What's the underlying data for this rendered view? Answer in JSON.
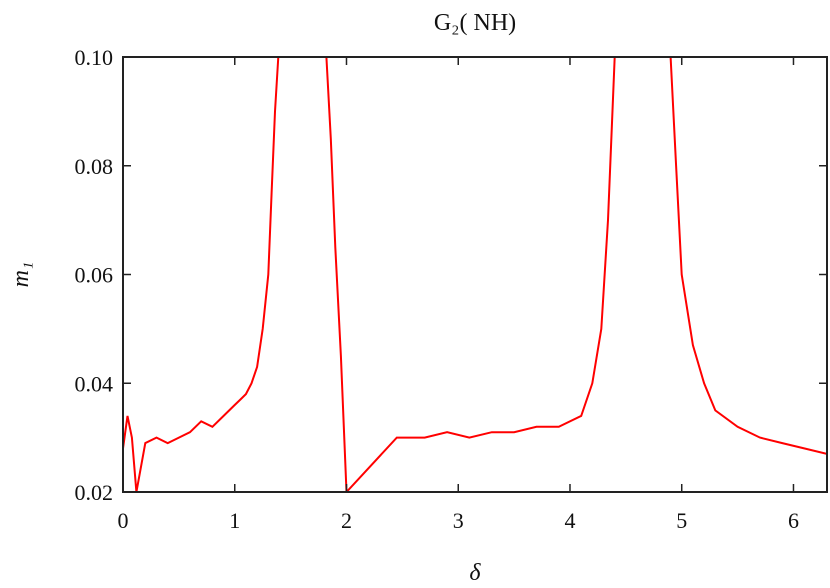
{
  "chart_data": {
    "type": "line",
    "title": "G₂( NH)",
    "xlabel": "δ",
    "ylabel": "m₁",
    "xlim": [
      0,
      6.3
    ],
    "ylim": [
      0.02,
      0.1
    ],
    "xticks": [
      "0",
      "1",
      "2",
      "3",
      "4",
      "5",
      "6"
    ],
    "yticks": [
      "0.02",
      "0.04",
      "0.06",
      "0.08",
      "0.10"
    ],
    "grid": false,
    "series": [
      {
        "color": "#ff0000",
        "x": [
          0.0,
          0.04,
          0.08,
          0.12,
          0.2,
          0.3,
          0.4,
          0.5,
          0.6,
          0.7,
          0.8,
          0.9,
          1.0,
          1.05,
          1.1,
          1.15,
          1.2,
          1.25,
          1.3,
          1.33,
          1.36,
          1.39,
          1.42,
          1.45,
          1.5,
          1.55,
          1.58,
          1.62,
          1.66,
          1.7,
          1.74,
          1.78,
          1.82,
          1.86,
          1.9,
          1.95,
          2.0,
          2.45,
          2.55,
          2.7,
          2.9,
          3.1,
          3.3,
          3.5,
          3.7,
          3.9,
          4.1,
          4.2,
          4.28,
          4.34,
          4.4,
          4.45,
          4.5,
          4.55,
          4.6,
          4.65,
          4.7,
          4.75,
          4.8,
          4.85,
          4.9,
          4.95,
          5.0,
          5.1,
          5.2,
          5.3,
          5.5,
          5.7,
          5.9,
          6.1,
          6.3
        ],
        "values": [
          0.028,
          0.034,
          0.03,
          0.02,
          0.029,
          0.03,
          0.029,
          0.03,
          0.031,
          0.033,
          0.032,
          0.034,
          0.036,
          0.037,
          0.038,
          0.04,
          0.043,
          0.05,
          0.06,
          0.075,
          0.09,
          0.1,
          0.1,
          0.1,
          0.1,
          0.1,
          0.1,
          0.1,
          0.1,
          0.1,
          0.1,
          0.1,
          0.1,
          0.085,
          0.065,
          0.045,
          0.02,
          0.03,
          0.03,
          0.03,
          0.031,
          0.03,
          0.031,
          0.031,
          0.032,
          0.032,
          0.034,
          0.04,
          0.05,
          0.07,
          0.1,
          0.1,
          0.1,
          0.1,
          0.1,
          0.1,
          0.1,
          0.1,
          0.1,
          0.1,
          0.1,
          0.08,
          0.06,
          0.047,
          0.04,
          0.035,
          0.032,
          0.03,
          0.029,
          0.028,
          0.027
        ]
      }
    ]
  }
}
